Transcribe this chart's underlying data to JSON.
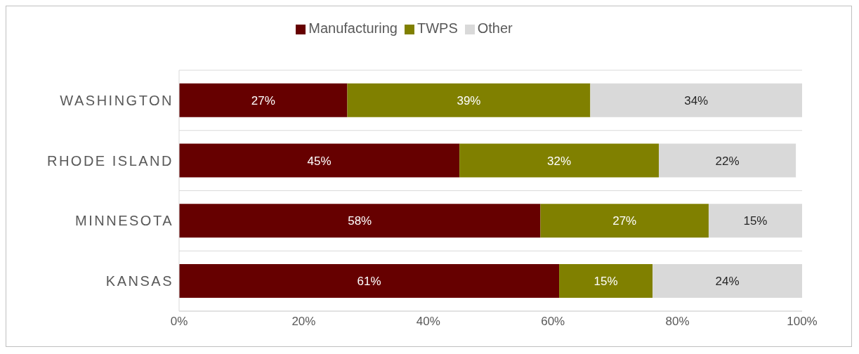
{
  "chart_data": {
    "type": "bar",
    "orientation": "horizontal",
    "stacked": true,
    "categories": [
      "WASHINGTON",
      "RHODE ISLAND",
      "MINNESOTA",
      "KANSAS"
    ],
    "series": [
      {
        "name": "Manufacturing",
        "color": "#660000",
        "values": [
          27,
          45,
          58,
          61
        ],
        "value_labels": [
          "27%",
          "45%",
          "58%",
          "61%"
        ]
      },
      {
        "name": "TWPS",
        "color": "#808000",
        "values": [
          39,
          32,
          27,
          15
        ],
        "value_labels": [
          "39%",
          "32%",
          "27%",
          "15%"
        ]
      },
      {
        "name": "Other",
        "color": "#d9d9d9",
        "values": [
          34,
          22,
          15,
          24
        ],
        "value_labels": [
          "34%",
          "22%",
          "15%",
          "24%"
        ]
      }
    ],
    "xlim": [
      0,
      100
    ],
    "xticks": [
      {
        "value": 0,
        "label": "0%"
      },
      {
        "value": 20,
        "label": "20%"
      },
      {
        "value": 40,
        "label": "40%"
      },
      {
        "value": 60,
        "label": "60%"
      },
      {
        "value": 80,
        "label": "80%"
      },
      {
        "value": 100,
        "label": "100%"
      }
    ],
    "grid": "y",
    "legend": "top"
  }
}
